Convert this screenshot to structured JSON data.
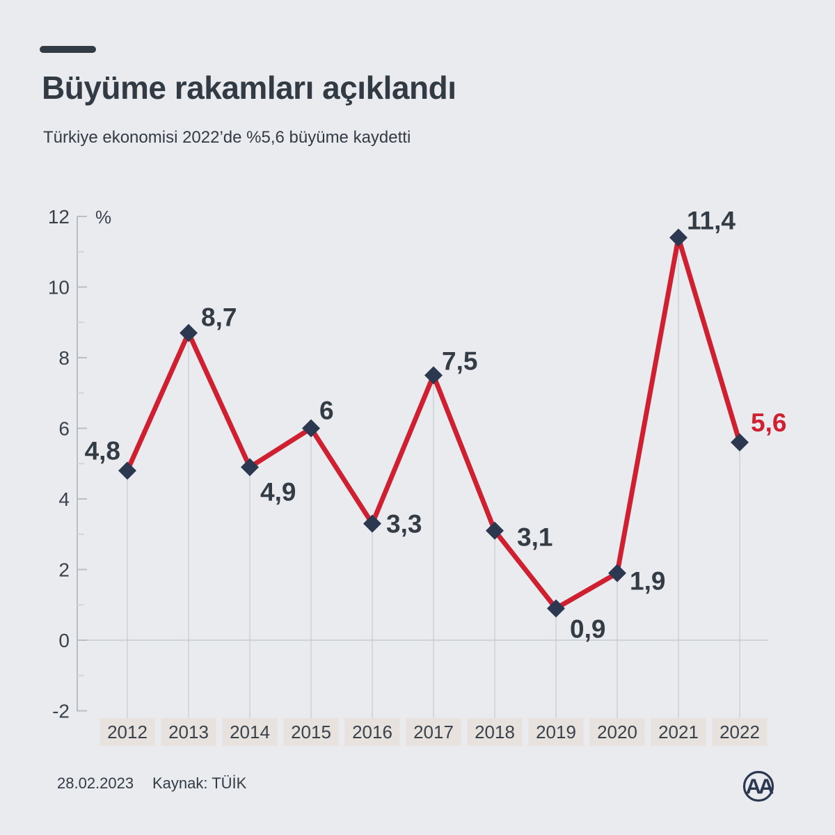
{
  "header": {
    "title": "Büyüme rakamları açıklandı",
    "subtitle": "Türkiye ekonomisi 2022’de %5,6 büyüme kaydetti"
  },
  "chart_data": {
    "type": "line",
    "title": "Büyüme rakamları açıklandı",
    "unit_label": "%",
    "categories": [
      "2012",
      "2013",
      "2014",
      "2015",
      "2016",
      "2017",
      "2018",
      "2019",
      "2020",
      "2021",
      "2022"
    ],
    "values": [
      4.8,
      8.7,
      4.9,
      6,
      3.3,
      7.5,
      3.1,
      0.9,
      1.9,
      11.4,
      5.6
    ],
    "value_labels": [
      "4,8",
      "8,7",
      "4,9",
      "6",
      "3,3",
      "7,5",
      "3,1",
      "0,9",
      "1,9",
      "11,4",
      "5,6"
    ],
    "highlight_index": 10,
    "y_ticks": [
      12,
      10,
      8,
      6,
      4,
      2,
      0,
      -2
    ],
    "ylim": [
      -2,
      12
    ],
    "grid": "per-point vertical lines and zero baseline",
    "legend": "none",
    "colors": {
      "line_red": "#cf2031",
      "marker_navy": "#2b3850",
      "label_dark": "#333b45",
      "label_highlight_red": "#cf2031",
      "year_box_beige": "#e7e2dd",
      "axis_gray": "#b9bec4",
      "grid_gray": "#c6cbcf",
      "minor_tick_gray": "#d3d7da",
      "background": "#e9ebee"
    }
  },
  "footer": {
    "date": "28.02.2023",
    "source": "Kaynak: TÜİK"
  },
  "logo": {
    "text": "AA"
  }
}
